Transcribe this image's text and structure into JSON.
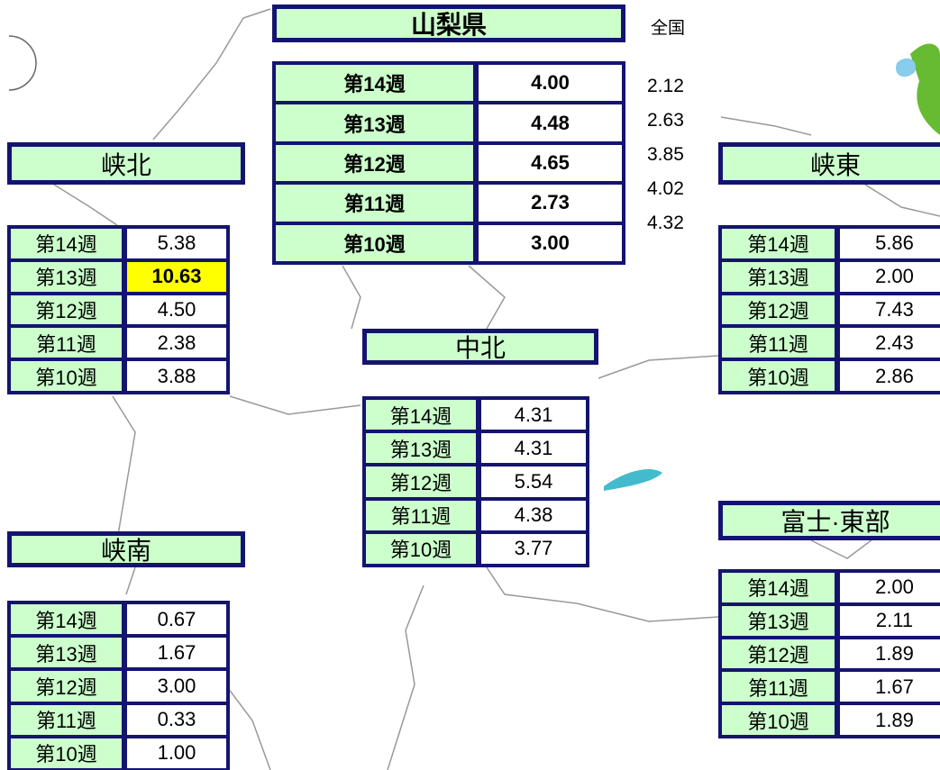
{
  "prefecture": {
    "title": "山梨県",
    "national_label": "全国",
    "rows": [
      [
        "第14週",
        "4.00",
        "2.12"
      ],
      [
        "第13週",
        "4.48",
        "2.63"
      ],
      [
        "第12週",
        "4.65",
        "3.85"
      ],
      [
        "第11週",
        "2.73",
        "4.02"
      ],
      [
        "第10週",
        "3.00",
        "4.32"
      ]
    ]
  },
  "regions": [
    {
      "name": "峡北",
      "rows": [
        [
          "第14週",
          "5.38"
        ],
        [
          "第13週",
          "10.63"
        ],
        [
          "第12週",
          "4.50"
        ],
        [
          "第11週",
          "2.38"
        ],
        [
          "第10週",
          "3.88"
        ]
      ]
    },
    {
      "name": "峡東",
      "rows": [
        [
          "第14週",
          "5.86"
        ],
        [
          "第13週",
          "2.00"
        ],
        [
          "第12週",
          "7.43"
        ],
        [
          "第11週",
          "2.43"
        ],
        [
          "第10週",
          "2.86"
        ]
      ]
    },
    {
      "name": "中北",
      "rows": [
        [
          "第14週",
          "4.31"
        ],
        [
          "第13週",
          "4.31"
        ],
        [
          "第12週",
          "5.54"
        ],
        [
          "第11週",
          "4.38"
        ],
        [
          "第10週",
          "3.77"
        ]
      ]
    },
    {
      "name": "峡南",
      "rows": [
        [
          "第14週",
          "0.67"
        ],
        [
          "第13週",
          "1.67"
        ],
        [
          "第12週",
          "3.00"
        ],
        [
          "第11週",
          "0.33"
        ],
        [
          "第10週",
          "1.00"
        ]
      ]
    },
    {
      "name": "富士·東部",
      "rows": [
        [
          "第14週",
          "2.00"
        ],
        [
          "第13週",
          "2.11"
        ],
        [
          "第12週",
          "1.89"
        ],
        [
          "第11週",
          "1.67"
        ],
        [
          "第10週",
          "1.89"
        ]
      ]
    }
  ]
}
